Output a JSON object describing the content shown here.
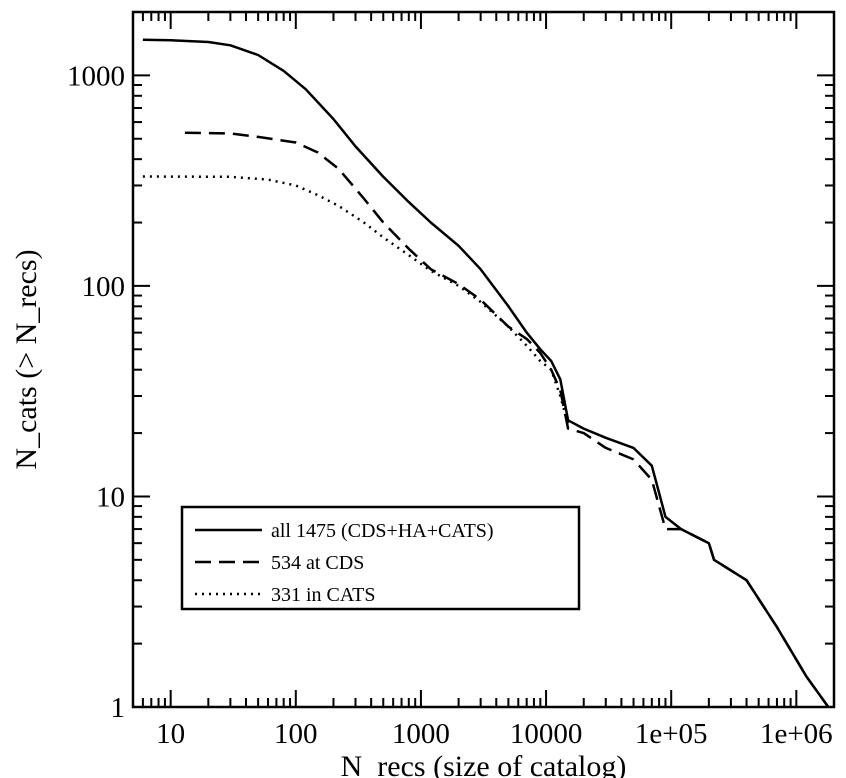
{
  "chart_data": {
    "type": "line",
    "title": "",
    "xlabel": "N_recs (size of catalog)",
    "ylabel": "N_cats (> N_recs)",
    "xscale": "log",
    "yscale": "log",
    "xlim": [
      5,
      2000000
    ],
    "ylim": [
      1,
      2000
    ],
    "x_tick_labels": [
      {
        "value": 10,
        "label": "10"
      },
      {
        "value": 100,
        "label": "100"
      },
      {
        "value": 1000,
        "label": "1000"
      },
      {
        "value": 10000,
        "label": "10000"
      },
      {
        "value": 100000,
        "label": "1e+05"
      },
      {
        "value": 1000000,
        "label": "1e+06"
      }
    ],
    "y_tick_labels": [
      {
        "value": 1,
        "label": "1"
      },
      {
        "value": 10,
        "label": "10"
      },
      {
        "value": 100,
        "label": "100"
      },
      {
        "value": 1000,
        "label": "1000"
      }
    ],
    "grid": false,
    "legend_position": "lower-left",
    "series": [
      {
        "name": "all 1475 (CDS+HA+CATS)",
        "style": "solid",
        "color": "#000000",
        "points": [
          [
            6,
            1475
          ],
          [
            10,
            1470
          ],
          [
            20,
            1440
          ],
          [
            30,
            1390
          ],
          [
            50,
            1250
          ],
          [
            80,
            1050
          ],
          [
            120,
            860
          ],
          [
            200,
            620
          ],
          [
            300,
            460
          ],
          [
            500,
            330
          ],
          [
            800,
            250
          ],
          [
            1200,
            200
          ],
          [
            2000,
            155
          ],
          [
            3000,
            120
          ],
          [
            5000,
            80
          ],
          [
            7000,
            60
          ],
          [
            9000,
            50
          ],
          [
            11000,
            44
          ],
          [
            13000,
            36
          ],
          [
            15000,
            23
          ],
          [
            20000,
            21
          ],
          [
            30000,
            19
          ],
          [
            50000,
            17
          ],
          [
            70000,
            14
          ],
          [
            90000,
            8
          ],
          [
            120000,
            7
          ],
          [
            200000,
            6
          ],
          [
            220000,
            5
          ],
          [
            400000,
            4
          ],
          [
            700000,
            2.4
          ],
          [
            1200000,
            1.4
          ],
          [
            1800000,
            1
          ]
        ]
      },
      {
        "name": "534 at CDS",
        "style": "dashed",
        "color": "#000000",
        "points": [
          [
            13,
            534
          ],
          [
            30,
            530
          ],
          [
            50,
            510
          ],
          [
            100,
            480
          ],
          [
            150,
            430
          ],
          [
            220,
            360
          ],
          [
            350,
            260
          ],
          [
            500,
            200
          ],
          [
            800,
            150
          ],
          [
            1200,
            120
          ],
          [
            2000,
            102
          ],
          [
            3000,
            86
          ],
          [
            5000,
            64
          ],
          [
            7000,
            56
          ],
          [
            9000,
            48
          ],
          [
            11000,
            40
          ],
          [
            13000,
            32
          ],
          [
            15000,
            21
          ],
          [
            20000,
            20
          ],
          [
            30000,
            17
          ],
          [
            50000,
            15
          ],
          [
            70000,
            12
          ],
          [
            90000,
            7
          ],
          [
            120000,
            7
          ],
          [
            200000,
            6
          ],
          [
            220000,
            5
          ],
          [
            400000,
            4
          ],
          [
            700000,
            2.4
          ],
          [
            1200000,
            1.4
          ],
          [
            1800000,
            1
          ]
        ]
      },
      {
        "name": "331 in CATS",
        "style": "dotted",
        "color": "#000000",
        "points": [
          [
            6,
            331
          ],
          [
            30,
            330
          ],
          [
            60,
            320
          ],
          [
            100,
            300
          ],
          [
            150,
            270
          ],
          [
            220,
            240
          ],
          [
            350,
            200
          ],
          [
            500,
            170
          ],
          [
            800,
            140
          ],
          [
            1200,
            118
          ],
          [
            2000,
            100
          ],
          [
            3000,
            84
          ],
          [
            5000,
            64
          ],
          [
            7000,
            52
          ],
          [
            9000,
            44
          ],
          [
            11000,
            40
          ],
          [
            13000,
            30
          ],
          [
            15000,
            22
          ]
        ]
      }
    ]
  }
}
